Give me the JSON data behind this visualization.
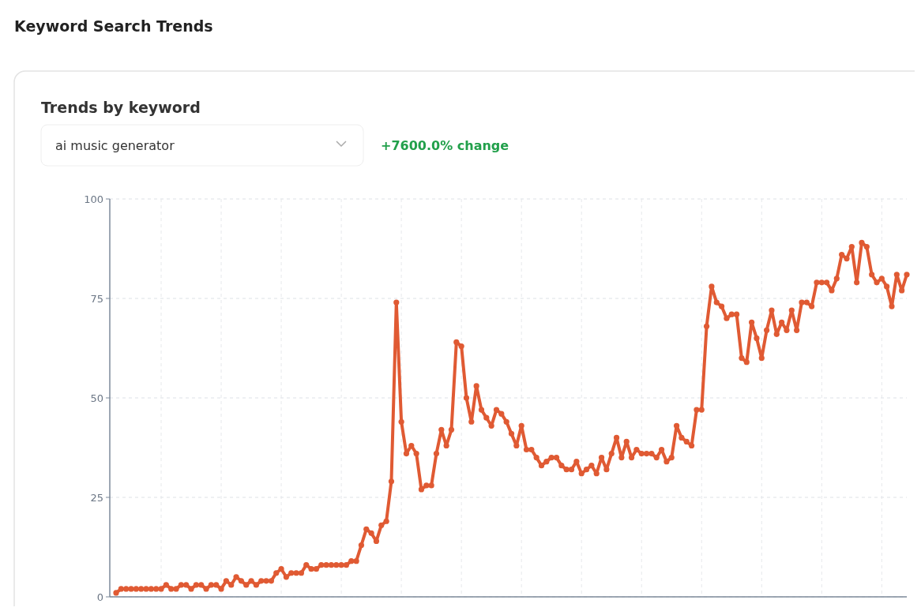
{
  "chart_data": {
    "type": "line",
    "title": "Keyword Search Trends",
    "subtitle": "Trends by keyword",
    "annotations": [
      "ai music generator",
      "+7600.0% change"
    ],
    "categories": [
      null,
      null,
      null,
      null,
      null,
      null,
      null,
      null,
      null,
      null,
      null,
      null,
      null,
      null,
      null,
      null,
      null,
      null,
      null,
      null,
      null,
      null,
      null,
      null,
      null,
      null,
      null,
      null,
      null,
      null,
      null,
      null,
      null,
      null,
      null,
      null,
      null,
      null,
      null,
      null,
      null,
      null,
      null,
      null,
      null,
      null,
      null,
      null,
      null,
      null,
      null,
      null,
      null,
      null,
      null,
      null,
      null,
      null,
      null,
      null,
      null,
      null,
      null,
      null,
      null,
      null,
      null,
      null,
      null,
      null,
      null,
      null,
      null,
      null,
      null,
      null,
      null,
      null,
      null,
      null,
      null,
      null,
      null,
      null,
      null,
      null,
      null,
      null,
      null,
      null,
      null,
      null,
      null,
      null,
      null,
      null,
      null,
      null,
      null,
      null,
      null,
      null,
      null,
      null,
      null,
      null,
      null,
      null,
      null,
      null,
      null,
      null,
      null,
      null,
      null,
      null,
      null,
      null,
      null,
      null,
      null,
      null,
      null,
      null,
      null,
      null,
      null,
      null,
      null,
      null,
      null,
      null,
      null,
      null,
      null,
      null,
      null,
      null,
      null,
      null,
      null,
      null,
      null,
      null,
      null,
      null,
      null,
      null,
      null,
      null,
      null,
      null,
      null,
      null,
      null,
      null,
      null,
      null,
      null
    ],
    "series": [
      {
        "color": "#e05a33",
        "values": [
          1,
          2,
          2,
          2,
          2,
          2,
          2,
          2,
          2,
          2,
          3,
          2,
          2,
          3,
          3,
          2,
          3,
          3,
          2,
          3,
          3,
          2,
          4,
          3,
          5,
          4,
          3,
          4,
          3,
          4,
          4,
          4,
          6,
          7,
          5,
          6,
          6,
          6,
          8,
          7,
          7,
          8,
          8,
          8,
          8,
          8,
          8,
          9,
          9,
          13,
          17,
          16,
          14,
          18,
          19,
          29,
          74,
          44,
          36,
          38,
          36,
          27,
          28,
          28,
          36,
          42,
          38,
          42,
          64,
          63,
          50,
          44,
          53,
          47,
          45,
          43,
          47,
          46,
          44,
          41,
          38,
          43,
          37,
          37,
          35,
          33,
          34,
          35,
          35,
          33,
          32,
          32,
          34,
          31,
          32,
          33,
          31,
          35,
          32,
          36,
          40,
          35,
          39,
          35,
          37,
          36,
          36,
          36,
          35,
          37,
          34,
          35,
          43,
          40,
          39,
          38,
          47,
          47,
          68,
          78,
          74,
          73,
          70,
          71,
          71,
          60,
          59,
          69,
          65,
          60,
          67,
          72,
          66,
          69,
          67,
          72,
          67,
          74,
          74,
          73,
          79,
          79,
          79,
          77,
          80,
          86,
          85,
          88,
          79,
          89,
          88,
          81,
          79,
          80,
          78,
          73,
          81,
          77,
          81
        ]
      }
    ],
    "ylim": [
      0,
      100
    ],
    "yticks": [
      0,
      25,
      50,
      75,
      100
    ],
    "grid": true,
    "marker": "circle",
    "line_style": "solid"
  }
}
